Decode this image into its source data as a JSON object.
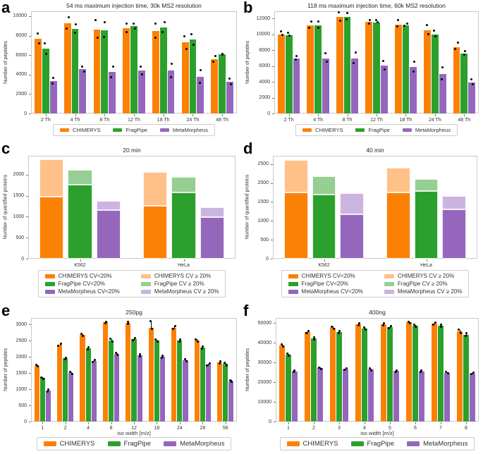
{
  "chart_data": [
    {
      "id": "a",
      "letter": "a",
      "type": "grouped",
      "title": "54 ms maximum injection time, 30k MS2 resolution",
      "ylabel": "Number of peptides",
      "xlabel": "",
      "categories": [
        "2 Th",
        "4 Th",
        "8 Th",
        "12 Th",
        "18 Th",
        "24 Th",
        "48 Th"
      ],
      "ymax": 10500,
      "yticks": [
        0,
        2000,
        4000,
        6000,
        8000,
        10000
      ],
      "series": [
        {
          "name": "CHIMERYS",
          "color": "#fb8105",
          "values": [
            7650,
            9300,
            8650,
            8750,
            8500,
            7300,
            5600
          ],
          "points": [
            [
              8200,
              7200
            ],
            [
              9900,
              8750
            ],
            [
              9600,
              7800
            ],
            [
              9250,
              8400
            ],
            [
              9250,
              7800
            ],
            [
              7950,
              6650
            ],
            [
              5900,
              5350
            ]
          ]
        },
        {
          "name": "FragPipe",
          "color": "#2ca02c",
          "values": [
            6650,
            8700,
            8550,
            8950,
            8850,
            7600,
            6100
          ],
          "points": [
            [
              7200,
              6150
            ],
            [
              9150,
              8300
            ],
            [
              9350,
              7850
            ],
            [
              9250,
              8700
            ],
            [
              9400,
              8350
            ],
            [
              8150,
              7050
            ],
            [
              6150,
              6050
            ]
          ]
        },
        {
          "name": "MetaMorpheus",
          "color": "#9467bd",
          "values": [
            3300,
            4550,
            4250,
            4400,
            4400,
            3750,
            3250
          ],
          "points": [
            [
              3650,
              3050
            ],
            [
              4850,
              4300
            ],
            [
              4800,
              3700
            ],
            [
              4800,
              4000
            ],
            [
              5100,
              3700
            ],
            [
              4450,
              3150
            ],
            [
              3550,
              3000
            ]
          ]
        }
      ],
      "legend": [
        "CHIMERYS",
        "FragPipe",
        "MetaMorpheus"
      ]
    },
    {
      "id": "b",
      "letter": "b",
      "type": "grouped",
      "title": "118 ms maximum injection time, 60k MS2 resolution",
      "ylabel": "Number of peptides",
      "xlabel": "",
      "categories": [
        "2 Th",
        "4 Th",
        "8 Th",
        "12 Th",
        "18 Th",
        "24 Th",
        "48 Th"
      ],
      "ymax": 12900,
      "yticks": [
        0,
        2000,
        4000,
        6000,
        8000,
        10000,
        12000
      ],
      "series": [
        {
          "name": "CHIMERYS",
          "color": "#fb8105",
          "values": [
            10000,
            11100,
            12150,
            11600,
            11200,
            10500,
            8400
          ],
          "points": [
            [
              10400,
              9900
            ],
            [
              11600,
              10800
            ],
            [
              12750,
              11700
            ],
            [
              11750,
              11350
            ],
            [
              11750,
              10950
            ],
            [
              11200,
              10000
            ],
            [
              8950,
              8100
            ]
          ]
        },
        {
          "name": "FragPipe",
          "color": "#2ca02c",
          "values": [
            9900,
            11150,
            12200,
            11450,
            11100,
            10000,
            7550
          ],
          "points": [
            [
              10150,
              9800
            ],
            [
              11600,
              10850
            ],
            [
              12700,
              11850
            ],
            [
              11750,
              11500
            ],
            [
              11300,
              11050
            ],
            [
              10450,
              9700
            ],
            [
              7850,
              7450
            ]
          ]
        },
        {
          "name": "MetaMorpheus",
          "color": "#9467bd",
          "values": [
            6950,
            6950,
            6950,
            6050,
            5850,
            5000,
            3900
          ],
          "points": [
            [
              7250,
              6800
            ],
            [
              7600,
              6500
            ],
            [
              7700,
              6400
            ],
            [
              6650,
              5600
            ],
            [
              6550,
              5250
            ],
            [
              5850,
              4300
            ],
            [
              4350,
              3700
            ]
          ]
        }
      ],
      "legend": [
        "CHIMERYS",
        "FragPipe",
        "MetaMorpheus"
      ]
    },
    {
      "id": "c",
      "letter": "c",
      "type": "stacked",
      "title": "20 min",
      "ylabel": "Number of quantified proteins",
      "xlabel": "",
      "categories": [
        "K562",
        "HeLa"
      ],
      "ymax": 2450,
      "yticks": [
        0,
        500,
        1000,
        1500,
        2000
      ],
      "stacks": [
        {
          "dark_label": "CHIMERYS CV<20%",
          "light_label": "CHIMERYS CV ≥ 20%",
          "dark_color": "#fb8105",
          "light_color": "#ffc188",
          "dark": [
            1480,
            1260
          ],
          "light": [
            880,
            810
          ]
        },
        {
          "dark_label": "FragPipe CV<20%",
          "light_label": "FragPipe CV ≥ 20%",
          "dark_color": "#2ca02c",
          "light_color": "#95cf92",
          "dark": [
            1760,
            1580
          ],
          "light": [
            360,
            370
          ]
        },
        {
          "dark_label": "MetaMorpheus CV<20%",
          "light_label": "MetaMorpheus CV ≥ 20%",
          "dark_color": "#9467bd",
          "light_color": "#cbb5e0",
          "dark": [
            1160,
            990
          ],
          "light": [
            220,
            240
          ]
        }
      ]
    },
    {
      "id": "d",
      "letter": "d",
      "type": "stacked",
      "title": "40 min",
      "ylabel": "Number of quantified proteins",
      "xlabel": "",
      "categories": [
        "K562",
        "HeLa"
      ],
      "ymax": 2720,
      "yticks": [
        0,
        500,
        1000,
        1500,
        2000,
        2500
      ],
      "stacks": [
        {
          "dark_label": "CHIMERYS CV<20%",
          "light_label": "CHIMERYS CV ≥ 20%",
          "dark_color": "#fb8105",
          "light_color": "#ffc188",
          "dark": [
            1750,
            1750
          ],
          "light": [
            860,
            660
          ]
        },
        {
          "dark_label": "FragPipe CV<20%",
          "light_label": "FragPipe CV ≥ 20%",
          "dark_color": "#2ca02c",
          "light_color": "#95cf92",
          "dark": [
            1700,
            1780
          ],
          "light": [
            480,
            330
          ]
        },
        {
          "dark_label": "MetaMorpheus CV<20%",
          "light_label": "MetaMorpheus CV ≥ 20%",
          "dark_color": "#9467bd",
          "light_color": "#cbb5e0",
          "dark": [
            1180,
            1310
          ],
          "light": [
            560,
            350
          ]
        }
      ]
    },
    {
      "id": "e",
      "letter": "e",
      "type": "grouped",
      "title": "250pg",
      "ylabel": "Number of peptides",
      "xlabel": "iso width [m/z]",
      "categories": [
        "1",
        "2",
        "4",
        "8",
        "12",
        "18",
        "24",
        "28",
        "56"
      ],
      "ymax": 3200,
      "yticks": [
        0,
        500,
        1000,
        1500,
        2000,
        2500,
        3000
      ],
      "series": [
        {
          "name": "CHIMERYS",
          "color": "#fb8105",
          "values": [
            1730,
            2380,
            2670,
            3060,
            3050,
            2890,
            2900,
            2500,
            1830
          ],
          "points": [
            [
              1760,
              1700
            ],
            [
              2410,
              2350
            ],
            [
              2700,
              2640
            ],
            [
              3090,
              3030
            ],
            [
              3090,
              3020
            ],
            [
              3100,
              2860
            ],
            [
              2940,
              2870
            ],
            [
              2540,
              2470
            ],
            [
              1870,
              1800
            ]
          ]
        },
        {
          "name": "FragPipe",
          "color": "#2ca02c",
          "values": [
            1340,
            1950,
            2260,
            2510,
            2540,
            2500,
            2500,
            2280,
            1780
          ],
          "points": [
            [
              1370,
              1310
            ],
            [
              1980,
              1920
            ],
            [
              2290,
              2230
            ],
            [
              2550,
              2480
            ],
            [
              2570,
              2510
            ],
            [
              2530,
              2470
            ],
            [
              2530,
              2470
            ],
            [
              2310,
              2250
            ],
            [
              1810,
              1740
            ]
          ]
        },
        {
          "name": "MetaMorpheus",
          "color": "#9467bd",
          "values": [
            950,
            1500,
            1870,
            2090,
            2040,
            2010,
            1890,
            1760,
            1250
          ],
          "points": [
            [
              980,
              920
            ],
            [
              1530,
              1470
            ],
            [
              1900,
              1840
            ],
            [
              2120,
              2060
            ],
            [
              2070,
              2010
            ],
            [
              2040,
              1980
            ],
            [
              1920,
              1860
            ],
            [
              1790,
              1730
            ],
            [
              1280,
              1220
            ]
          ]
        }
      ],
      "legend": [
        "CHIMERYS",
        "FragPipe",
        "MetaMorpheus"
      ]
    },
    {
      "id": "f",
      "letter": "f",
      "type": "grouped",
      "title": "400ng",
      "ylabel": "Number of peptides",
      "xlabel": "iso width [m/z]",
      "categories": [
        "1",
        "2",
        "3",
        "4",
        "5",
        "6",
        "7",
        "8"
      ],
      "ymax": 52500,
      "yticks": [
        0,
        10000,
        20000,
        30000,
        40000,
        50000
      ],
      "series": [
        {
          "name": "CHIMERYS",
          "color": "#fb8105",
          "values": [
            38500,
            45300,
            47600,
            49300,
            49400,
            50200,
            49700,
            45700
          ],
          "points": [
            [
              39000,
              38100
            ],
            [
              45800,
              44800
            ],
            [
              48100,
              47100
            ],
            [
              49800,
              48900
            ],
            [
              49900,
              48900
            ],
            [
              50700,
              49700
            ],
            [
              50200,
              49200
            ],
            [
              46500,
              45000
            ]
          ]
        },
        {
          "name": "FragPipe",
          "color": "#2ca02c",
          "values": [
            33800,
            42200,
            45500,
            47200,
            48000,
            48600,
            48600,
            44000
          ],
          "points": [
            [
              34300,
              33300
            ],
            [
              42700,
              41700
            ],
            [
              46000,
              45000
            ],
            [
              47700,
              46700
            ],
            [
              48500,
              47500
            ],
            [
              49100,
              48100
            ],
            [
              49100,
              48100
            ],
            [
              44800,
              43400
            ]
          ]
        },
        {
          "name": "MetaMorpheus",
          "color": "#9467bd",
          "values": [
            25500,
            27100,
            26500,
            26400,
            25600,
            25500,
            24700,
            24400
          ],
          "points": [
            [
              25900,
              25100
            ],
            [
              27500,
              26700
            ],
            [
              26900,
              26100
            ],
            [
              26800,
              26000
            ],
            [
              26000,
              25200
            ],
            [
              25900,
              25100
            ],
            [
              25100,
              24300
            ],
            [
              24800,
              24000
            ]
          ]
        }
      ],
      "legend": [
        "CHIMERYS",
        "FragPipe",
        "MetaMorpheus"
      ]
    }
  ]
}
